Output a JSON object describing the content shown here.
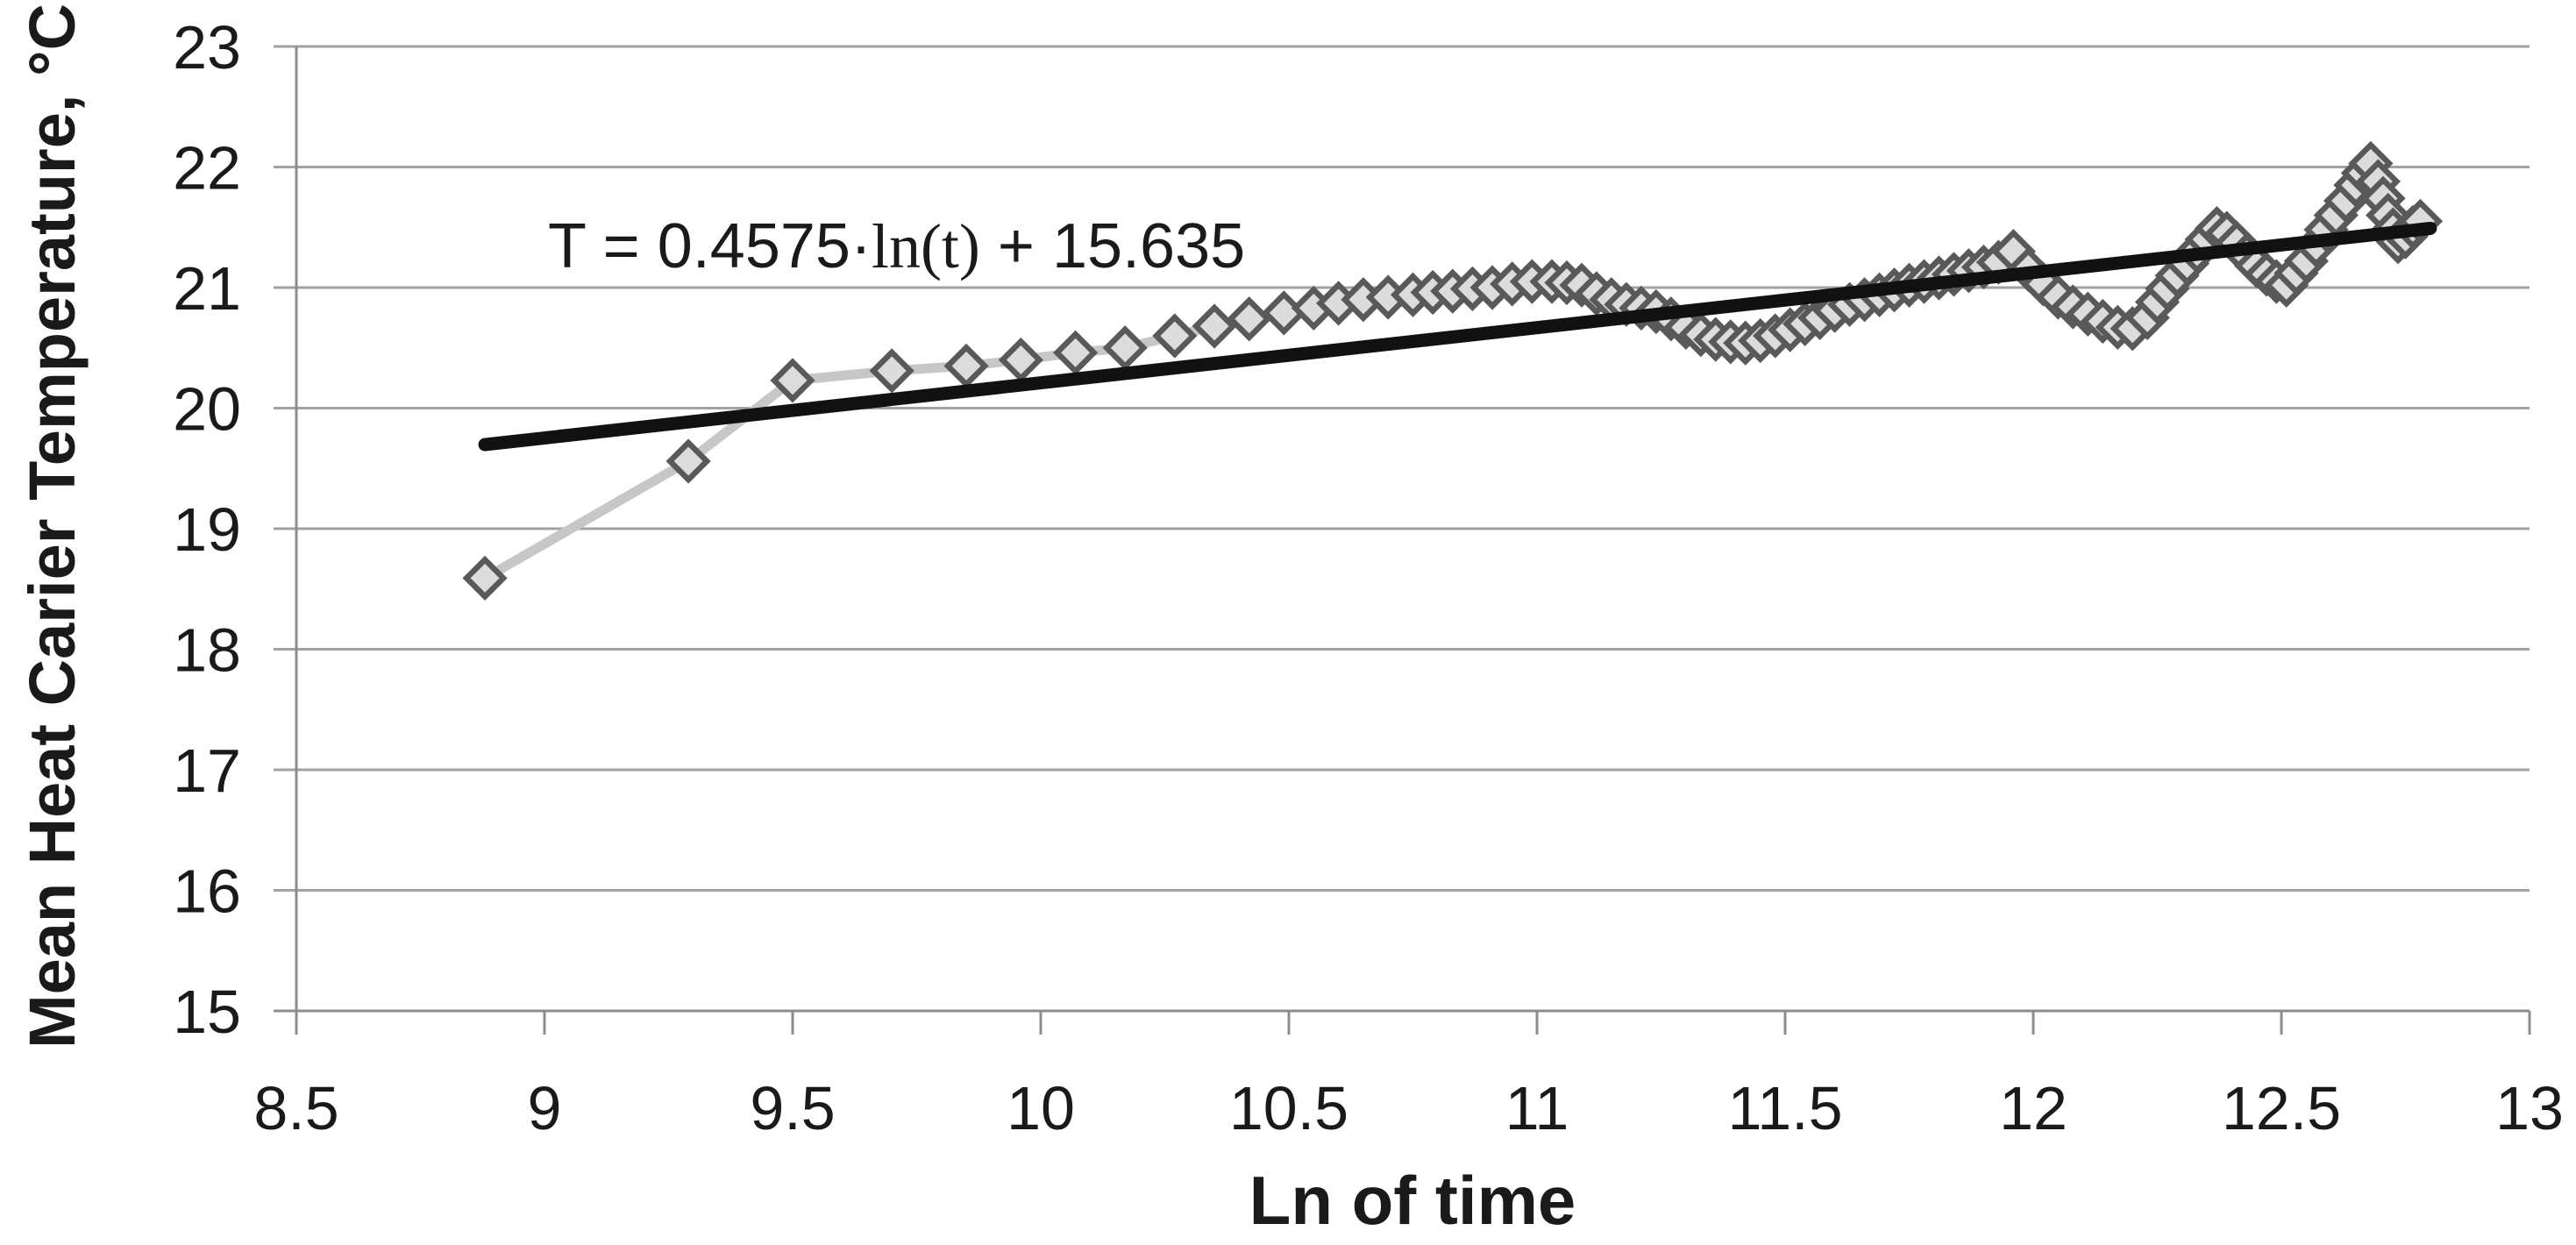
{
  "equation": {
    "prefix": "T = 0.4575·",
    "fn": "ln(t)",
    "suffix": " + 15.635",
    "full": "T = 0.4575·ln(t) + 15.635"
  },
  "chart_data": {
    "type": "line",
    "title": "",
    "xlabel": "Ln of time",
    "ylabel": "Mean Heat Carier Temperature, °C",
    "xlim": [
      8.5,
      13
    ],
    "ylim": [
      15,
      23
    ],
    "x_ticks": [
      8.5,
      9,
      9.5,
      10,
      10.5,
      11,
      11.5,
      12,
      12.5,
      13
    ],
    "y_ticks": [
      15,
      16,
      17,
      18,
      19,
      20,
      21,
      22,
      23
    ],
    "grid": "horizontal-only",
    "legend": "none",
    "annotation": {
      "text": "T = 0.4575·ln(t) + 15.635",
      "anchored_near_xy": [
        9.0,
        21.5
      ]
    },
    "series": [
      {
        "name": "measured-temperature",
        "style": "thick light-gray line with open diamond markers",
        "color": "#c7c7c7",
        "marker_fill": "#dcdcdc",
        "marker_border": "#595959",
        "points": [
          [
            8.88,
            18.59
          ],
          [
            9.29,
            19.56
          ],
          [
            9.5,
            20.23
          ],
          [
            9.7,
            20.31
          ],
          [
            9.85,
            20.35
          ],
          [
            9.96,
            20.4
          ],
          [
            10.07,
            20.46
          ],
          [
            10.17,
            20.5
          ],
          [
            10.27,
            20.6
          ],
          [
            10.35,
            20.68
          ],
          [
            10.42,
            20.74
          ],
          [
            10.49,
            20.79
          ],
          [
            10.55,
            20.83
          ],
          [
            10.6,
            20.87
          ],
          [
            10.65,
            20.9
          ],
          [
            10.7,
            20.92
          ],
          [
            10.75,
            20.94
          ],
          [
            10.79,
            20.96
          ],
          [
            10.83,
            20.97
          ],
          [
            10.87,
            20.99
          ],
          [
            10.91,
            21.0
          ],
          [
            10.95,
            21.03
          ],
          [
            10.99,
            21.05
          ],
          [
            11.03,
            21.05
          ],
          [
            11.06,
            21.04
          ],
          [
            11.09,
            21.02
          ],
          [
            11.12,
            20.95
          ],
          [
            11.15,
            20.9
          ],
          [
            11.18,
            20.86
          ],
          [
            11.21,
            20.83
          ],
          [
            11.24,
            20.8
          ],
          [
            11.27,
            20.74
          ],
          [
            11.3,
            20.67
          ],
          [
            11.33,
            20.61
          ],
          [
            11.36,
            20.57
          ],
          [
            11.39,
            20.55
          ],
          [
            11.42,
            20.54
          ],
          [
            11.45,
            20.56
          ],
          [
            11.48,
            20.6
          ],
          [
            11.51,
            20.65
          ],
          [
            11.54,
            20.7
          ],
          [
            11.57,
            20.75
          ],
          [
            11.6,
            20.81
          ],
          [
            11.63,
            20.86
          ],
          [
            11.66,
            20.9
          ],
          [
            11.69,
            20.94
          ],
          [
            11.72,
            20.98
          ],
          [
            11.75,
            21.02
          ],
          [
            11.78,
            21.05
          ],
          [
            11.81,
            21.08
          ],
          [
            11.84,
            21.11
          ],
          [
            11.87,
            21.14
          ],
          [
            11.9,
            21.17
          ],
          [
            11.93,
            21.21
          ],
          [
            11.96,
            21.3
          ],
          [
            11.99,
            21.15
          ],
          [
            12.02,
            21.03
          ],
          [
            12.05,
            20.92
          ],
          [
            12.08,
            20.84
          ],
          [
            12.11,
            20.78
          ],
          [
            12.14,
            20.72
          ],
          [
            12.17,
            20.67
          ],
          [
            12.2,
            20.66
          ],
          [
            12.23,
            20.75
          ],
          [
            12.25,
            20.88
          ],
          [
            12.27,
            20.99
          ],
          [
            12.29,
            21.1
          ],
          [
            12.31,
            21.2
          ],
          [
            12.33,
            21.3
          ],
          [
            12.35,
            21.4
          ],
          [
            12.37,
            21.49
          ],
          [
            12.39,
            21.45
          ],
          [
            12.41,
            21.37
          ],
          [
            12.43,
            21.27
          ],
          [
            12.45,
            21.18
          ],
          [
            12.47,
            21.11
          ],
          [
            12.49,
            21.05
          ],
          [
            12.51,
            21.02
          ],
          [
            12.53,
            21.12
          ],
          [
            12.55,
            21.22
          ],
          [
            12.57,
            21.35
          ],
          [
            12.59,
            21.48
          ],
          [
            12.61,
            21.6
          ],
          [
            12.63,
            21.72
          ],
          [
            12.65,
            21.85
          ],
          [
            12.665,
            21.95
          ],
          [
            12.68,
            22.03
          ],
          [
            12.695,
            21.88
          ],
          [
            12.705,
            21.74
          ],
          [
            12.715,
            21.6
          ],
          [
            12.725,
            21.48
          ],
          [
            12.735,
            21.38
          ],
          [
            12.75,
            21.42
          ],
          [
            12.765,
            21.5
          ],
          [
            12.78,
            21.55
          ]
        ]
      },
      {
        "name": "log-trendline",
        "style": "thick black straight line",
        "color": "#111111",
        "x_start": 8.88,
        "x_end": 12.8,
        "slope": 0.4575,
        "intercept": 15.635
      }
    ]
  },
  "colors": {
    "background": "#ffffff",
    "gridline": "#a2a2a2",
    "axis": "#8c8c8c",
    "text": "#1a1a1a"
  }
}
